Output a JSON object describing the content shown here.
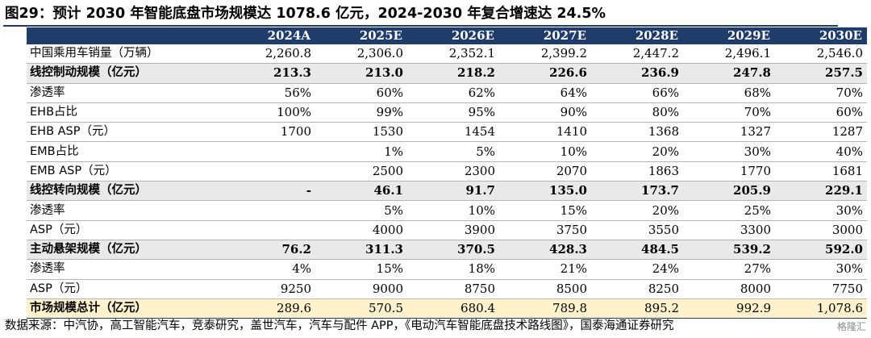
{
  "title": "图29：预计 2030 年智能底盘市场规模达 1078.6 亿元，2024-2030 年复合增速达 24.5%",
  "header": [
    "",
    "2024A",
    "2025E",
    "2026E",
    "2027E",
    "2028E",
    "2029E",
    "2030E"
  ],
  "rows": [
    {
      "label": "中国乘用车销量（万辆）",
      "type": "normal",
      "values": [
        "2,260.8",
        "2,306.0",
        "2,352.1",
        "2,399.2",
        "2,447.2",
        "2,496.1",
        "2,546.0"
      ]
    },
    {
      "label": "线控制动规模（亿元）",
      "type": "section",
      "values": [
        "213.3",
        "213.0",
        "218.2",
        "226.6",
        "236.9",
        "247.8",
        "257.5"
      ]
    },
    {
      "label": "渗透率",
      "type": "normal",
      "values": [
        "56%",
        "60%",
        "62%",
        "64%",
        "66%",
        "68%",
        "70%"
      ]
    },
    {
      "label": "EHB占比",
      "type": "normal",
      "values": [
        "100%",
        "99%",
        "95%",
        "90%",
        "80%",
        "70%",
        "60%"
      ]
    },
    {
      "label": "EHB ASP（元）",
      "type": "normal",
      "values": [
        "1700",
        "1530",
        "1454",
        "1410",
        "1368",
        "1327",
        "1287"
      ]
    },
    {
      "label": "EMB占比",
      "type": "normal",
      "values": [
        "",
        "1%",
        "5%",
        "10%",
        "20%",
        "30%",
        "40%"
      ]
    },
    {
      "label": "EMB ASP（元）",
      "type": "normal",
      "values": [
        "",
        "2500",
        "2300",
        "2070",
        "1863",
        "1770",
        "1681"
      ]
    },
    {
      "label": "线控转向规模（亿元）",
      "type": "section",
      "values": [
        "-",
        "46.1",
        "91.7",
        "135.0",
        "173.7",
        "205.9",
        "229.1"
      ]
    },
    {
      "label": "渗透率",
      "type": "normal",
      "values": [
        "",
        "5%",
        "10%",
        "15%",
        "20%",
        "25%",
        "30%"
      ]
    },
    {
      "label": "ASP（元）",
      "type": "normal",
      "values": [
        "",
        "4000",
        "3900",
        "3750",
        "3550",
        "3300",
        "3000"
      ]
    },
    {
      "label": "主动悬架规模（亿元）",
      "type": "section",
      "values": [
        "76.2",
        "311.3",
        "370.5",
        "428.3",
        "484.5",
        "539.2",
        "592.0"
      ]
    },
    {
      "label": "渗透率",
      "type": "normal",
      "values": [
        "4%",
        "15%",
        "18%",
        "21%",
        "24%",
        "27%",
        "30%"
      ]
    },
    {
      "label": "ASP（元）",
      "type": "normal",
      "values": [
        "9250",
        "9000",
        "8750",
        "8500",
        "8250",
        "8000",
        "7750"
      ]
    },
    {
      "label": "市场规模总计（亿元）",
      "type": "total",
      "values": [
        "289.6",
        "570.5",
        "680.4",
        "789.8",
        "895.2",
        "992.9",
        "1,078.6"
      ]
    }
  ],
  "source": "数据来源：中汽协，高工智能汽车，竞泰研究，盖世汽车，汽车与配件 APP，《电动汽车智能底盘技术路线图》，国泰海通证券研究",
  "watermark": "格隆汇",
  "colors": {
    "header_bg": "#1f3c6b",
    "section_bg": "#e9e9e9",
    "total_bg": "#fff2cc"
  }
}
